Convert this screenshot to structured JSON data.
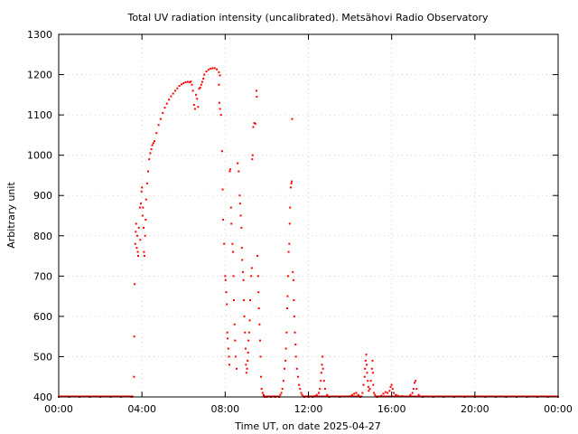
{
  "chart_data": {
    "type": "scatter",
    "title": "Total UV radiation intensity (uncalibrated). Metsähovi Radio Observatory",
    "xlabel": "Time UT, on date 2025-04-27",
    "ylabel": "Arbitrary unit",
    "xlim_hours": [
      0,
      24
    ],
    "ylim": [
      400,
      1300
    ],
    "grid": true,
    "marker_color": "#ff0000",
    "x_ticks": [
      {
        "h": 0,
        "label": "00:00"
      },
      {
        "h": 4,
        "label": "04:00"
      },
      {
        "h": 8,
        "label": "08:00"
      },
      {
        "h": 12,
        "label": "12:00"
      },
      {
        "h": 16,
        "label": "16:00"
      },
      {
        "h": 20,
        "label": "20:00"
      },
      {
        "h": 24,
        "label": "00:00"
      }
    ],
    "y_ticks": [
      {
        "v": 400,
        "label": "400"
      },
      {
        "v": 500,
        "label": "500"
      },
      {
        "v": 600,
        "label": "600"
      },
      {
        "v": 700,
        "label": "700"
      },
      {
        "v": 800,
        "label": "800"
      },
      {
        "v": 900,
        "label": "900"
      },
      {
        "v": 1000,
        "label": "1000"
      },
      {
        "v": 1100,
        "label": "1100"
      },
      {
        "v": 1200,
        "label": "1200"
      },
      {
        "v": 1300,
        "label": "1300"
      }
    ],
    "series": [
      {
        "points": [
          [
            0.0,
            400
          ],
          [
            0.5,
            400
          ],
          [
            1.0,
            400
          ],
          [
            1.5,
            400
          ],
          [
            2.0,
            400
          ],
          [
            2.5,
            400
          ],
          [
            3.0,
            400
          ],
          [
            3.5,
            400
          ],
          [
            3.62,
            450
          ],
          [
            3.63,
            550
          ],
          [
            3.65,
            680
          ],
          [
            3.68,
            780
          ],
          [
            3.7,
            810
          ],
          [
            3.72,
            830
          ],
          [
            3.75,
            770
          ],
          [
            3.78,
            800
          ],
          [
            3.8,
            760
          ],
          [
            3.82,
            750
          ],
          [
            3.85,
            820
          ],
          [
            3.9,
            870
          ],
          [
            3.92,
            790
          ],
          [
            3.95,
            880
          ],
          [
            3.98,
            910
          ],
          [
            4.0,
            920
          ],
          [
            4.03,
            850
          ],
          [
            4.05,
            870
          ],
          [
            4.08,
            820
          ],
          [
            4.1,
            760
          ],
          [
            4.12,
            750
          ],
          [
            4.15,
            800
          ],
          [
            4.18,
            840
          ],
          [
            4.2,
            890
          ],
          [
            4.25,
            930
          ],
          [
            4.3,
            960
          ],
          [
            4.35,
            990
          ],
          [
            4.4,
            1005
          ],
          [
            4.45,
            1015
          ],
          [
            4.5,
            1025
          ],
          [
            4.55,
            1030
          ],
          [
            4.6,
            1035
          ],
          [
            4.7,
            1055
          ],
          [
            4.8,
            1075
          ],
          [
            4.9,
            1090
          ],
          [
            5.0,
            1105
          ],
          [
            5.1,
            1118
          ],
          [
            5.2,
            1128
          ],
          [
            5.3,
            1138
          ],
          [
            5.4,
            1146
          ],
          [
            5.5,
            1153
          ],
          [
            5.6,
            1160
          ],
          [
            5.7,
            1166
          ],
          [
            5.8,
            1172
          ],
          [
            5.9,
            1176
          ],
          [
            6.0,
            1179
          ],
          [
            6.1,
            1181
          ],
          [
            6.2,
            1182
          ],
          [
            6.3,
            1181
          ],
          [
            6.35,
            1183
          ],
          [
            6.4,
            1175
          ],
          [
            6.45,
            1160
          ],
          [
            6.5,
            1125
          ],
          [
            6.55,
            1115
          ],
          [
            6.6,
            1150
          ],
          [
            6.65,
            1140
          ],
          [
            6.7,
            1120
          ],
          [
            6.75,
            1165
          ],
          [
            6.8,
            1168
          ],
          [
            6.85,
            1175
          ],
          [
            6.9,
            1182
          ],
          [
            6.95,
            1190
          ],
          [
            7.0,
            1200
          ],
          [
            7.1,
            1208
          ],
          [
            7.2,
            1212
          ],
          [
            7.3,
            1215
          ],
          [
            7.4,
            1216
          ],
          [
            7.5,
            1216
          ],
          [
            7.6,
            1213
          ],
          [
            7.7,
            1206
          ],
          [
            7.75,
            1198
          ],
          [
            7.7,
            1175
          ],
          [
            7.72,
            1130
          ],
          [
            7.75,
            1115
          ],
          [
            7.8,
            1100
          ],
          [
            7.85,
            1010
          ],
          [
            7.88,
            915
          ],
          [
            7.9,
            840
          ],
          [
            7.95,
            780
          ],
          [
            8.0,
            700
          ],
          [
            8.02,
            690
          ],
          [
            8.05,
            660
          ],
          [
            8.08,
            630
          ],
          [
            8.1,
            560
          ],
          [
            8.12,
            545
          ],
          [
            8.15,
            520
          ],
          [
            8.18,
            500
          ],
          [
            8.2,
            480
          ],
          [
            8.22,
            960
          ],
          [
            8.25,
            965
          ],
          [
            8.28,
            870
          ],
          [
            8.3,
            830
          ],
          [
            8.35,
            780
          ],
          [
            8.38,
            760
          ],
          [
            8.4,
            700
          ],
          [
            8.42,
            640
          ],
          [
            8.45,
            580
          ],
          [
            8.48,
            540
          ],
          [
            8.5,
            500
          ],
          [
            8.55,
            470
          ],
          [
            8.6,
            980
          ],
          [
            8.65,
            960
          ],
          [
            8.7,
            900
          ],
          [
            8.72,
            880
          ],
          [
            8.75,
            850
          ],
          [
            8.78,
            820
          ],
          [
            8.8,
            770
          ],
          [
            8.82,
            740
          ],
          [
            8.85,
            710
          ],
          [
            8.88,
            690
          ],
          [
            8.9,
            640
          ],
          [
            8.92,
            600
          ],
          [
            8.95,
            560
          ],
          [
            8.98,
            520
          ],
          [
            9.0,
            480
          ],
          [
            9.02,
            460
          ],
          [
            9.05,
            470
          ],
          [
            9.08,
            490
          ],
          [
            9.1,
            510
          ],
          [
            9.12,
            540
          ],
          [
            9.15,
            560
          ],
          [
            9.18,
            590
          ],
          [
            9.2,
            640
          ],
          [
            9.25,
            700
          ],
          [
            9.28,
            720
          ],
          [
            9.3,
            990
          ],
          [
            9.32,
            1000
          ],
          [
            9.35,
            1070
          ],
          [
            9.4,
            1080
          ],
          [
            9.45,
            1078
          ],
          [
            9.5,
            1160
          ],
          [
            9.52,
            1145
          ],
          [
            9.55,
            750
          ],
          [
            9.58,
            700
          ],
          [
            9.6,
            660
          ],
          [
            9.62,
            620
          ],
          [
            9.65,
            580
          ],
          [
            9.68,
            540
          ],
          [
            9.7,
            500
          ],
          [
            9.72,
            450
          ],
          [
            9.75,
            420
          ],
          [
            9.8,
            410
          ],
          [
            9.85,
            405
          ],
          [
            9.9,
            400
          ],
          [
            10.0,
            400
          ],
          [
            10.2,
            400
          ],
          [
            10.4,
            400
          ],
          [
            10.6,
            400
          ],
          [
            10.65,
            405
          ],
          [
            10.7,
            410
          ],
          [
            10.75,
            420
          ],
          [
            10.8,
            440
          ],
          [
            10.85,
            470
          ],
          [
            10.9,
            490
          ],
          [
            10.92,
            520
          ],
          [
            10.95,
            560
          ],
          [
            10.98,
            620
          ],
          [
            11.0,
            650
          ],
          [
            11.02,
            700
          ],
          [
            11.05,
            760
          ],
          [
            11.08,
            780
          ],
          [
            11.1,
            830
          ],
          [
            11.12,
            870
          ],
          [
            11.15,
            920
          ],
          [
            11.18,
            930
          ],
          [
            11.2,
            935
          ],
          [
            11.22,
            1090
          ],
          [
            11.25,
            710
          ],
          [
            11.28,
            690
          ],
          [
            11.3,
            640
          ],
          [
            11.32,
            600
          ],
          [
            11.35,
            560
          ],
          [
            11.38,
            530
          ],
          [
            11.4,
            500
          ],
          [
            11.45,
            470
          ],
          [
            11.5,
            450
          ],
          [
            11.55,
            430
          ],
          [
            11.6,
            420
          ],
          [
            11.65,
            410
          ],
          [
            11.7,
            405
          ],
          [
            11.8,
            400
          ],
          [
            12.0,
            400
          ],
          [
            12.2,
            400
          ],
          [
            12.3,
            402
          ],
          [
            12.4,
            405
          ],
          [
            12.5,
            410
          ],
          [
            12.55,
            420
          ],
          [
            12.6,
            440
          ],
          [
            12.62,
            460
          ],
          [
            12.65,
            480
          ],
          [
            12.68,
            500
          ],
          [
            12.7,
            470
          ],
          [
            12.75,
            440
          ],
          [
            12.8,
            420
          ],
          [
            12.9,
            405
          ],
          [
            13.0,
            400
          ],
          [
            13.5,
            400
          ],
          [
            14.0,
            402
          ],
          [
            14.1,
            405
          ],
          [
            14.2,
            408
          ],
          [
            14.3,
            410
          ],
          [
            14.4,
            405
          ],
          [
            14.5,
            400
          ],
          [
            14.6,
            410
          ],
          [
            14.65,
            430
          ],
          [
            14.7,
            450
          ],
          [
            14.72,
            470
          ],
          [
            14.75,
            490
          ],
          [
            14.78,
            505
          ],
          [
            14.8,
            480
          ],
          [
            14.82,
            460
          ],
          [
            14.85,
            440
          ],
          [
            14.88,
            425
          ],
          [
            14.9,
            415
          ],
          [
            14.95,
            420
          ],
          [
            15.0,
            440
          ],
          [
            15.05,
            470
          ],
          [
            15.08,
            490
          ],
          [
            15.1,
            460
          ],
          [
            15.12,
            430
          ],
          [
            15.15,
            410
          ],
          [
            15.2,
            405
          ],
          [
            15.3,
            400
          ],
          [
            15.5,
            403
          ],
          [
            15.6,
            408
          ],
          [
            15.7,
            412
          ],
          [
            15.8,
            410
          ],
          [
            15.9,
            415
          ],
          [
            15.95,
            425
          ],
          [
            16.0,
            430
          ],
          [
            16.05,
            420
          ],
          [
            16.1,
            410
          ],
          [
            16.2,
            405
          ],
          [
            16.3,
            403
          ],
          [
            16.5,
            402
          ],
          [
            16.7,
            401
          ],
          [
            16.9,
            405
          ],
          [
            17.0,
            410
          ],
          [
            17.05,
            420
          ],
          [
            17.1,
            435
          ],
          [
            17.15,
            440
          ],
          [
            17.2,
            420
          ],
          [
            17.3,
            405
          ],
          [
            17.5,
            400
          ],
          [
            18.0,
            400
          ],
          [
            18.5,
            400
          ],
          [
            19.0,
            400
          ],
          [
            19.5,
            400
          ],
          [
            20.0,
            400
          ],
          [
            20.5,
            400
          ],
          [
            21.0,
            400
          ],
          [
            21.5,
            400
          ],
          [
            22.0,
            400
          ],
          [
            22.5,
            400
          ],
          [
            23.0,
            400
          ],
          [
            23.5,
            400
          ],
          [
            24.0,
            400
          ]
        ]
      }
    ]
  }
}
